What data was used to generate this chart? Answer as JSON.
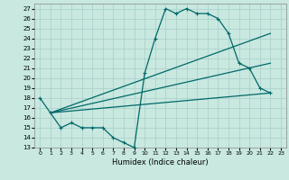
{
  "xlabel": "Humidex (Indice chaleur)",
  "ylabel": "",
  "xlim": [
    -0.5,
    23.5
  ],
  "ylim": [
    13,
    27.5
  ],
  "yticks": [
    13,
    14,
    15,
    16,
    17,
    18,
    19,
    20,
    21,
    22,
    23,
    24,
    25,
    26,
    27
  ],
  "xticks": [
    0,
    1,
    2,
    3,
    4,
    5,
    6,
    7,
    8,
    9,
    10,
    11,
    12,
    13,
    14,
    15,
    16,
    17,
    18,
    19,
    20,
    21,
    22,
    23
  ],
  "bg_color": "#c8e8e0",
  "grid_color": "#a8cfc8",
  "line_color": "#006868",
  "line1_x": [
    0,
    1,
    2,
    3,
    4,
    5,
    6,
    7,
    8,
    9,
    10,
    11,
    12,
    13,
    14,
    15,
    16,
    17,
    18,
    19,
    20,
    21,
    22
  ],
  "line1_y": [
    18,
    16.5,
    15,
    15.5,
    15,
    15,
    15,
    14,
    13.5,
    13,
    20.5,
    24,
    27,
    26.5,
    27,
    26.5,
    26.5,
    26,
    24.5,
    21.5,
    21,
    19,
    18.5
  ],
  "line2_x": [
    1,
    22
  ],
  "line2_y": [
    16.5,
    24.5
  ],
  "line3_x": [
    1,
    22
  ],
  "line3_y": [
    16.5,
    21.5
  ],
  "line4_x": [
    1,
    22
  ],
  "line4_y": [
    16.5,
    18.5
  ]
}
